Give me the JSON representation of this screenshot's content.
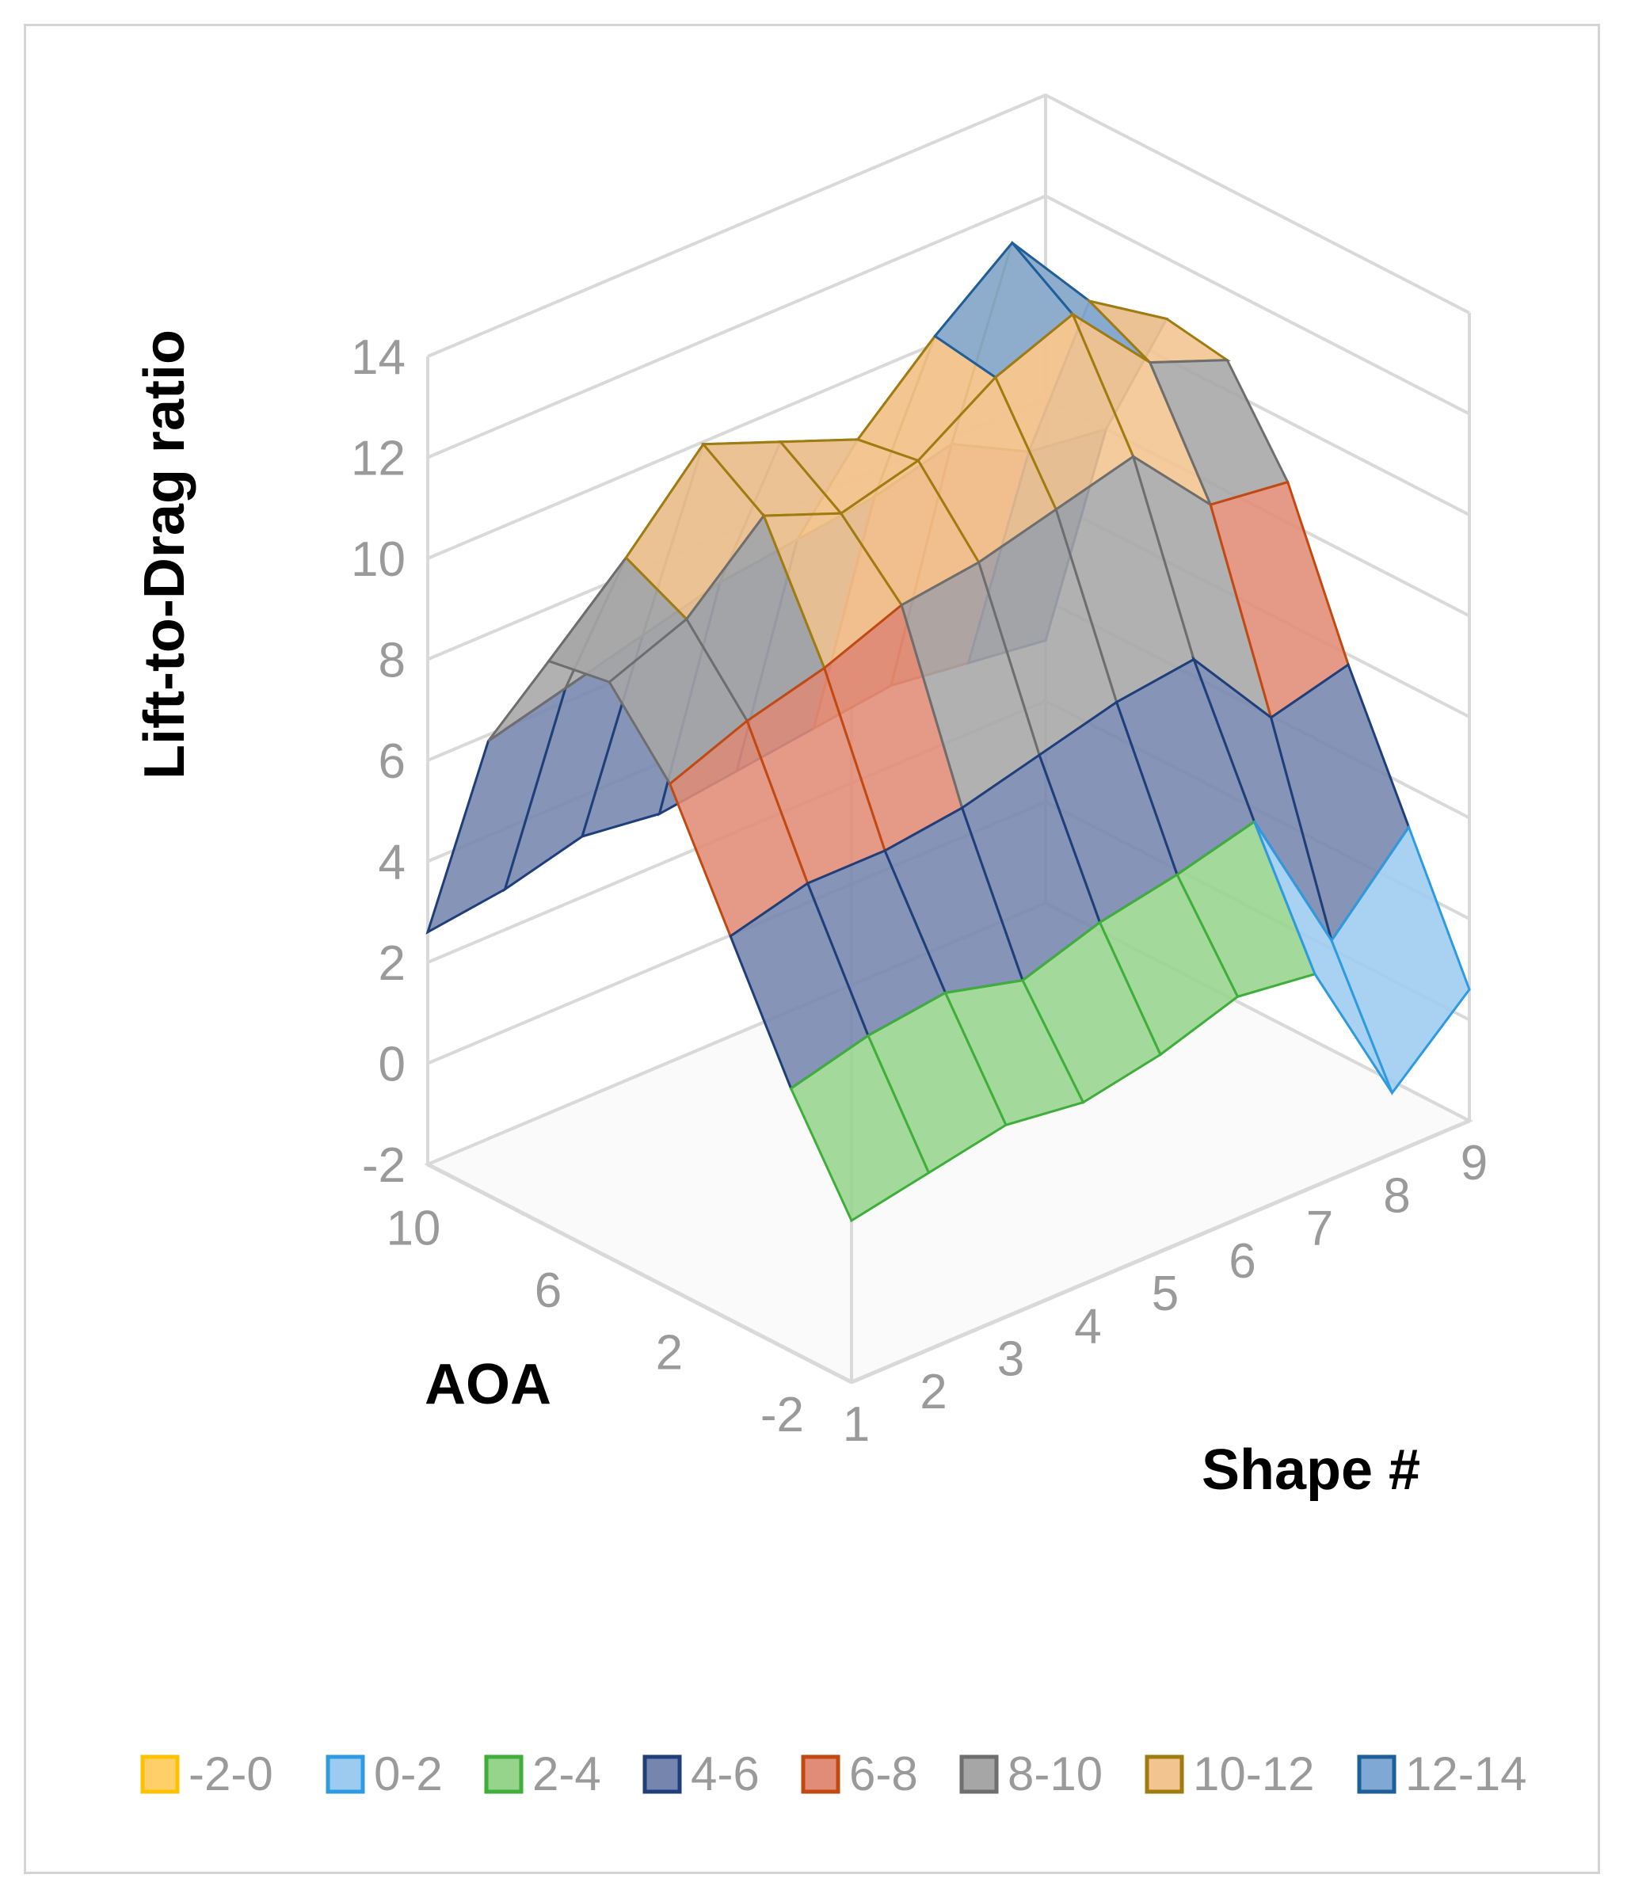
{
  "chart_data": {
    "type": "surface",
    "title": "",
    "zlabel": "Lift-to-Drag ratio",
    "ylabel": "AOA",
    "xlabel": "Shape #",
    "zlim": [
      -2,
      14
    ],
    "z_ticks": [
      "-2",
      "0",
      "2",
      "4",
      "6",
      "8",
      "10",
      "12",
      "14"
    ],
    "aoa_ticks": [
      "-2",
      "2",
      "6",
      "10"
    ],
    "shape_ticks": [
      "1",
      "2",
      "3",
      "4",
      "5",
      "6",
      "7",
      "8",
      "9"
    ],
    "shapes": [
      1,
      2,
      3,
      4,
      5,
      6,
      7,
      8,
      9
    ],
    "aoa": [
      -2,
      0,
      2,
      4,
      6,
      8,
      10,
      12
    ],
    "z": [
      [
        1.2,
        1.5,
        1.8,
        1.6,
        1.9,
        2.4,
        2.2,
        -0.8,
        0.6
      ],
      [
        3.2,
        3.6,
        3.8,
        3.4,
        3.9,
        4.2,
        4.6,
        1.6,
        3.2
      ],
      [
        5.6,
        6.0,
        6.0,
        6.2,
        6.6,
        7.0,
        7.2,
        5.4,
        5.8
      ],
      [
        8.0,
        8.6,
        9.0,
        9.6,
        9.8,
        10.2,
        10.6,
        9.0,
        8.8
      ],
      [
        9.4,
        10.0,
        11.4,
        10.8,
        11.2,
        12.2,
        12.8,
        11.2,
        10.6
      ],
      [
        9.2,
        10.6,
        12.2,
        11.6,
        11.0,
        12.4,
        13.6,
        11.8,
        10.8
      ],
      [
        7.0,
        7.4,
        7.8,
        8.2,
        8.4,
        8.6,
        9.0,
        8.2,
        8.0
      ],
      [
        2.6,
        2.8,
        3.2,
        3.0,
        3.2,
        3.4,
        3.6,
        3.4,
        3.2
      ]
    ],
    "legend": {
      "position": "bottom",
      "items": [
        {
          "label": "-2-0",
          "color": "#ffd06a",
          "edge": "#ffc000"
        },
        {
          "label": "0-2",
          "color": "#9dcbf0",
          "edge": "#2e9be0"
        },
        {
          "label": "2-4",
          "color": "#96d48c",
          "edge": "#3fae3a"
        },
        {
          "label": "4-6",
          "color": "#7585ad",
          "edge": "#1f3f7a"
        },
        {
          "label": "6-8",
          "color": "#e08c76",
          "edge": "#c24a12"
        },
        {
          "label": "8-10",
          "color": "#a6a6a6",
          "edge": "#6e6e6e"
        },
        {
          "label": "10-12",
          "color": "#f2c490",
          "edge": "#a07c10"
        },
        {
          "label": "12-14",
          "color": "#7fa8d4",
          "edge": "#1f5f99"
        }
      ]
    }
  }
}
